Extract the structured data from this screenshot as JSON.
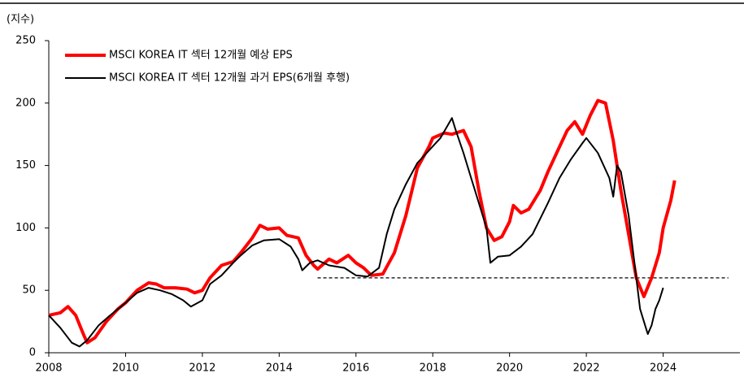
{
  "chart_data": {
    "type": "line",
    "y_label": "(지수)",
    "xlim": [
      2008,
      2026
    ],
    "xticks": [
      2008,
      2010,
      2012,
      2014,
      2016,
      2018,
      2020,
      2022,
      2024
    ],
    "ylim": [
      0,
      250
    ],
    "yticks": [
      0,
      50,
      100,
      150,
      200,
      250
    ],
    "legend": "top-left",
    "reference_line": {
      "value": 60,
      "x": [
        2015,
        2025.7
      ]
    },
    "series": [
      {
        "name": "MSCI KOREA IT 섹터 12개월 예상 EPS",
        "color": "#ff0000",
        "width": 4,
        "x": [
          2008.0,
          2008.3,
          2008.5,
          2008.7,
          2008.9,
          2009.0,
          2009.2,
          2009.5,
          2009.8,
          2010.0,
          2010.3,
          2010.6,
          2010.8,
          2011.0,
          2011.3,
          2011.6,
          2011.8,
          2012.0,
          2012.2,
          2012.5,
          2012.8,
          2013.0,
          2013.3,
          2013.5,
          2013.7,
          2014.0,
          2014.2,
          2014.5,
          2014.7,
          2014.9,
          2015.0,
          2015.3,
          2015.5,
          2015.8,
          2016.0,
          2016.2,
          2016.4,
          2016.7,
          2017.0,
          2017.3,
          2017.6,
          2017.9,
          2018.0,
          2018.3,
          2018.5,
          2018.8,
          2019.0,
          2019.2,
          2019.4,
          2019.6,
          2019.8,
          2020.0,
          2020.1,
          2020.3,
          2020.5,
          2020.8,
          2021.0,
          2021.3,
          2021.5,
          2021.7,
          2021.9,
          2022.1,
          2022.3,
          2022.5,
          2022.7,
          2022.9,
          2023.1,
          2023.3,
          2023.5,
          2023.7,
          2023.9,
          2024.0,
          2024.2,
          2024.3
        ],
        "values": [
          30,
          32,
          37,
          30,
          15,
          8,
          12,
          25,
          35,
          40,
          50,
          56,
          55,
          52,
          52,
          51,
          48,
          50,
          60,
          70,
          73,
          80,
          92,
          102,
          99,
          100,
          94,
          92,
          78,
          70,
          67,
          75,
          72,
          78,
          72,
          68,
          62,
          63,
          80,
          110,
          148,
          165,
          172,
          176,
          175,
          178,
          165,
          130,
          100,
          90,
          93,
          105,
          118,
          112,
          115,
          130,
          145,
          165,
          178,
          185,
          175,
          190,
          202,
          200,
          170,
          130,
          95,
          60,
          45,
          60,
          80,
          100,
          122,
          138
        ]
      },
      {
        "name": "MSCI KOREA IT 섹터 12개월 과거 EPS(6개월 후행)",
        "color": "#000000",
        "width": 2,
        "x": [
          2008.0,
          2008.3,
          2008.6,
          2008.8,
          2009.0,
          2009.3,
          2009.6,
          2010.0,
          2010.3,
          2010.6,
          2010.9,
          2011.2,
          2011.5,
          2011.7,
          2012.0,
          2012.2,
          2012.5,
          2012.8,
          2013.0,
          2013.3,
          2013.6,
          2014.0,
          2014.3,
          2014.5,
          2014.6,
          2014.8,
          2015.0,
          2015.3,
          2015.7,
          2016.0,
          2016.3,
          2016.6,
          2016.8,
          2017.0,
          2017.3,
          2017.6,
          2017.9,
          2018.2,
          2018.5,
          2018.6,
          2018.8,
          2019.0,
          2019.2,
          2019.4,
          2019.5,
          2019.7,
          2020.0,
          2020.3,
          2020.6,
          2021.0,
          2021.3,
          2021.6,
          2021.9,
          2022.0,
          2022.3,
          2022.6,
          2022.7,
          2022.8,
          2022.9,
          2023.1,
          2023.3,
          2023.4,
          2023.5,
          2023.6,
          2023.7,
          2023.8,
          2023.9,
          2024.0
        ],
        "values": [
          30,
          20,
          8,
          5,
          10,
          22,
          30,
          40,
          48,
          52,
          50,
          47,
          42,
          37,
          42,
          55,
          62,
          72,
          78,
          86,
          90,
          91,
          85,
          75,
          66,
          72,
          74,
          70,
          68,
          62,
          61,
          68,
          95,
          115,
          135,
          152,
          162,
          172,
          188,
          178,
          160,
          140,
          120,
          100,
          72,
          77,
          78,
          85,
          95,
          120,
          140,
          155,
          168,
          172,
          160,
          140,
          125,
          150,
          145,
          110,
          60,
          35,
          25,
          15,
          22,
          35,
          42,
          52
        ]
      }
    ]
  }
}
